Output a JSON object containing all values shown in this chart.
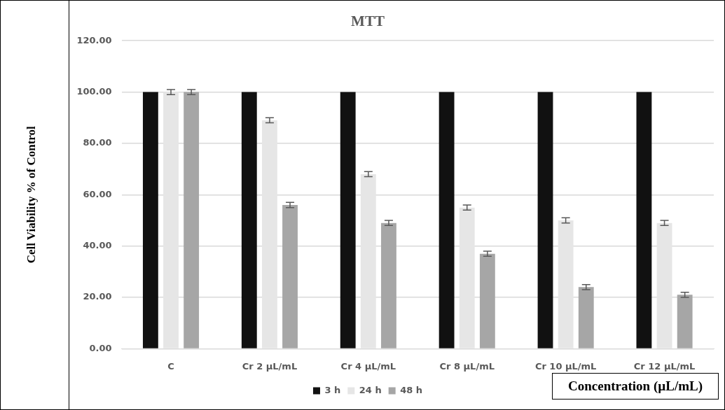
{
  "chart_data": {
    "type": "bar",
    "title": "MTT",
    "xlabel": "Concentration (µL/mL)",
    "ylabel": "Cell Viability % of Control",
    "categories": [
      "C",
      "Cr 2 µL/mL",
      "Cr 4 µL/mL",
      "Cr 8 µL/mL",
      "Cr 10 µL/mL",
      "Cr 12 µL/mL"
    ],
    "series": [
      {
        "name": "3 h",
        "color": "#111111",
        "values": [
          100,
          100,
          100,
          100,
          100,
          100
        ]
      },
      {
        "name": "24 h",
        "color": "#e6e6e6",
        "values": [
          100,
          89,
          68,
          55,
          50,
          49
        ],
        "errors": [
          1,
          1,
          1,
          1,
          1,
          1
        ]
      },
      {
        "name": "48 h",
        "color": "#a6a6a6",
        "values": [
          100,
          56,
          49,
          37,
          24,
          21
        ],
        "errors": [
          1,
          1,
          1,
          1,
          1,
          1
        ]
      }
    ],
    "ylim": [
      0,
      120
    ],
    "yticks": [
      {
        "value": 0,
        "label": "0.00"
      },
      {
        "value": 20,
        "label": "20.00"
      },
      {
        "value": 40,
        "label": "40.00"
      },
      {
        "value": 60,
        "label": "60.00"
      },
      {
        "value": 80,
        "label": "80.00"
      },
      {
        "value": 100,
        "label": "100.00"
      },
      {
        "value": 120,
        "label": "120.00"
      }
    ],
    "grid": "y",
    "legend": "bottom"
  }
}
